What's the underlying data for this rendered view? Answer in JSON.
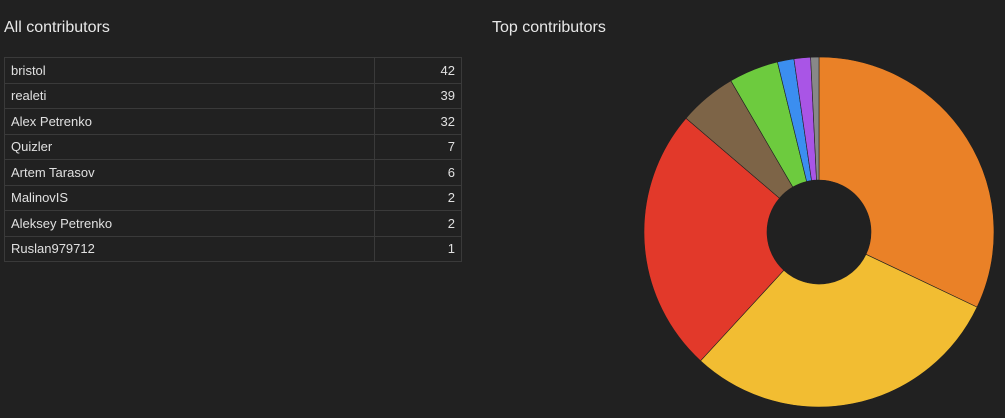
{
  "left_panel": {
    "title": "All contributors",
    "rows": [
      {
        "name": "bristol",
        "count": "42"
      },
      {
        "name": "realeti",
        "count": "39"
      },
      {
        "name": "Alex Petrenko",
        "count": "32"
      },
      {
        "name": "Quizler",
        "count": "7"
      },
      {
        "name": "Artem Tarasov",
        "count": "6"
      },
      {
        "name": "MalinovIS",
        "count": "2"
      },
      {
        "name": "Aleksey Petrenko",
        "count": "2"
      },
      {
        "name": "Ruslan979712",
        "count": "1"
      }
    ]
  },
  "right_panel": {
    "title": "Top contributors"
  },
  "chart_data": {
    "type": "pie",
    "title": "Top contributors",
    "donut": true,
    "categories": [
      "bristol",
      "realeti",
      "Alex Petrenko",
      "Quizler",
      "Artem Tarasov",
      "MalinovIS",
      "Aleksey Petrenko",
      "Ruslan979712"
    ],
    "values": [
      42,
      39,
      32,
      7,
      6,
      2,
      2,
      1
    ],
    "colors": [
      "#ea8127",
      "#f2bd32",
      "#e2392a",
      "#7d6447",
      "#6dcb3e",
      "#3b8ef0",
      "#a955e6",
      "#888888"
    ],
    "start_angle_deg": 0,
    "direction": "clockwise",
    "legend": "none"
  }
}
